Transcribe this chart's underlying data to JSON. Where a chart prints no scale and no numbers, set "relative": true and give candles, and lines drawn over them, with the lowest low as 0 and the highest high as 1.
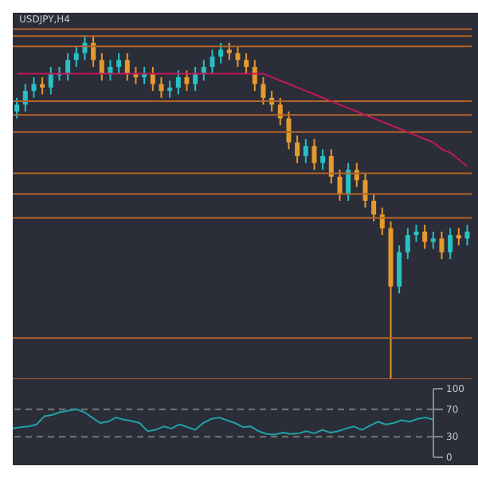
{
  "chart_data": [
    {
      "type": "candlestick",
      "title": "USDJPY,H4",
      "relative": true,
      "categories": [
        null,
        null,
        null,
        null,
        null,
        null,
        null,
        null,
        null,
        null,
        null,
        null,
        null,
        null,
        null,
        null,
        null,
        null,
        null,
        null,
        null,
        null,
        null,
        null,
        null,
        null,
        null,
        null,
        null,
        null,
        null,
        null,
        null,
        null,
        null,
        null,
        null,
        null,
        null,
        null,
        null,
        null,
        null,
        null,
        null,
        null,
        null,
        null,
        null,
        null,
        null,
        null,
        null,
        null
      ],
      "ohlc": [
        [
          0.78,
          0.82,
          0.76,
          0.8
        ],
        [
          0.8,
          0.86,
          0.78,
          0.84
        ],
        [
          0.84,
          0.88,
          0.82,
          0.86
        ],
        [
          0.86,
          0.88,
          0.83,
          0.85
        ],
        [
          0.85,
          0.91,
          0.83,
          0.89
        ],
        [
          0.89,
          0.91,
          0.87,
          0.89
        ],
        [
          0.89,
          0.95,
          0.87,
          0.93
        ],
        [
          0.93,
          0.97,
          0.91,
          0.95
        ],
        [
          0.95,
          1.0,
          0.93,
          0.98
        ],
        [
          0.98,
          1.0,
          0.91,
          0.93
        ],
        [
          0.93,
          0.95,
          0.87,
          0.89
        ],
        [
          0.89,
          0.93,
          0.87,
          0.91
        ],
        [
          0.91,
          0.95,
          0.89,
          0.93
        ],
        [
          0.93,
          0.95,
          0.87,
          0.89
        ],
        [
          0.89,
          0.91,
          0.86,
          0.88
        ],
        [
          0.88,
          0.91,
          0.86,
          0.89
        ],
        [
          0.89,
          0.91,
          0.84,
          0.86
        ],
        [
          0.86,
          0.88,
          0.82,
          0.84
        ],
        [
          0.84,
          0.87,
          0.82,
          0.85
        ],
        [
          0.85,
          0.9,
          0.83,
          0.88
        ],
        [
          0.88,
          0.9,
          0.84,
          0.86
        ],
        [
          0.86,
          0.91,
          0.84,
          0.89
        ],
        [
          0.89,
          0.93,
          0.87,
          0.91
        ],
        [
          0.91,
          0.96,
          0.89,
          0.94
        ],
        [
          0.94,
          0.98,
          0.92,
          0.96
        ],
        [
          0.96,
          0.98,
          0.93,
          0.95
        ],
        [
          0.95,
          0.97,
          0.91,
          0.93
        ],
        [
          0.93,
          0.95,
          0.89,
          0.91
        ],
        [
          0.91,
          0.93,
          0.84,
          0.86
        ],
        [
          0.86,
          0.88,
          0.8,
          0.82
        ],
        [
          0.82,
          0.84,
          0.78,
          0.8
        ],
        [
          0.8,
          0.82,
          0.74,
          0.76
        ],
        [
          0.76,
          0.78,
          0.67,
          0.69
        ],
        [
          0.69,
          0.71,
          0.63,
          0.65
        ],
        [
          0.65,
          0.7,
          0.63,
          0.68
        ],
        [
          0.68,
          0.7,
          0.61,
          0.63
        ],
        [
          0.63,
          0.67,
          0.61,
          0.65
        ],
        [
          0.65,
          0.67,
          0.57,
          0.59
        ],
        [
          0.59,
          0.61,
          0.52,
          0.54
        ],
        [
          0.54,
          0.63,
          0.52,
          0.61
        ],
        [
          0.61,
          0.63,
          0.56,
          0.58
        ],
        [
          0.58,
          0.6,
          0.5,
          0.52
        ],
        [
          0.52,
          0.54,
          0.46,
          0.48
        ],
        [
          0.48,
          0.5,
          0.42,
          0.44
        ],
        [
          0.44,
          0.46,
          0.0,
          0.27
        ],
        [
          0.27,
          0.39,
          0.25,
          0.37
        ],
        [
          0.37,
          0.44,
          0.35,
          0.42
        ],
        [
          0.42,
          0.45,
          0.4,
          0.43
        ],
        [
          0.43,
          0.45,
          0.38,
          0.4
        ],
        [
          0.4,
          0.43,
          0.38,
          0.41
        ],
        [
          0.41,
          0.43,
          0.35,
          0.37
        ],
        [
          0.37,
          0.44,
          0.35,
          0.42
        ],
        [
          0.42,
          0.44,
          0.39,
          0.41
        ],
        [
          0.41,
          0.45,
          0.39,
          0.43
        ]
      ],
      "colors": [
        "#27c1c4",
        "#27c1c4",
        "#27c1c4",
        "#e59a2e",
        "#27c1c4",
        "#27c1c4",
        "#27c1c4",
        "#27c1c4",
        "#27c1c4",
        "#e59a2e",
        "#e59a2e",
        "#27c1c4",
        "#27c1c4",
        "#e59a2e",
        "#e59a2e",
        "#27c1c4",
        "#e59a2e",
        "#e59a2e",
        "#27c1c4",
        "#27c1c4",
        "#e59a2e",
        "#27c1c4",
        "#27c1c4",
        "#27c1c4",
        "#27c1c4",
        "#e59a2e",
        "#e59a2e",
        "#e59a2e",
        "#e59a2e",
        "#e59a2e",
        "#e59a2e",
        "#e59a2e",
        "#e59a2e",
        "#e59a2e",
        "#27c1c4",
        "#e59a2e",
        "#27c1c4",
        "#e59a2e",
        "#e59a2e",
        "#27c1c4",
        "#e59a2e",
        "#e59a2e",
        "#e59a2e",
        "#e59a2e",
        "#e59a2e",
        "#27c1c4",
        "#27c1c4",
        "#27c1c4",
        "#e59a2e",
        "#27c1c4",
        "#e59a2e",
        "#27c1c4",
        "#e59a2e",
        "#27c1c4"
      ],
      "series": [
        {
          "type": "line",
          "color": "#c2185b",
          "values": [
            0.89,
            0.89,
            0.89,
            0.89,
            0.89,
            0.89,
            0.89,
            0.89,
            0.89,
            0.89,
            0.89,
            0.89,
            0.89,
            0.89,
            0.89,
            0.89,
            0.89,
            0.89,
            0.89,
            0.89,
            0.89,
            0.89,
            0.89,
            0.89,
            0.89,
            0.89,
            0.89,
            0.89,
            0.89,
            0.89,
            0.88,
            0.87,
            0.86,
            0.85,
            0.84,
            0.83,
            0.82,
            0.81,
            0.8,
            0.79,
            0.78,
            0.77,
            0.76,
            0.75,
            0.74,
            0.73,
            0.72,
            0.71,
            0.7,
            0.69,
            0.67,
            0.66,
            0.64,
            0.62
          ]
        }
      ],
      "ref_lines": [
        {
          "axis": "y",
          "value": 1.02,
          "color": "#b5652a"
        },
        {
          "axis": "y",
          "value": 1.0,
          "color": "#b5652a"
        },
        {
          "axis": "y",
          "value": 0.97,
          "color": "#b5652a"
        },
        {
          "axis": "y",
          "value": 0.81,
          "color": "#b5652a"
        },
        {
          "axis": "y",
          "value": 0.77,
          "color": "#b5652a"
        },
        {
          "axis": "y",
          "value": 0.72,
          "color": "#b5652a"
        },
        {
          "axis": "y",
          "value": 0.6,
          "color": "#b5652a"
        },
        {
          "axis": "y",
          "value": 0.54,
          "color": "#b5652a"
        },
        {
          "axis": "y",
          "value": 0.47,
          "color": "#b5652a"
        },
        {
          "axis": "y",
          "value": 0.12,
          "color": "#b5652a"
        },
        {
          "axis": "y",
          "value": 0,
          "color": "#b5652a"
        }
      ],
      "tick_labels": false
    },
    {
      "type": "line",
      "categories": [
        null,
        null,
        null,
        null,
        null,
        null,
        null,
        null,
        null,
        null,
        null,
        null,
        null,
        null,
        null,
        null,
        null,
        null,
        null,
        null,
        null,
        null,
        null,
        null,
        null,
        null,
        null,
        null,
        null,
        null,
        null,
        null,
        null,
        null,
        null,
        null,
        null,
        null,
        null,
        null,
        null,
        null,
        null,
        null,
        null,
        null,
        null,
        null,
        null,
        null,
        null,
        null,
        null,
        null
      ],
      "series": [
        {
          "color": "#1fa2a6",
          "values": [
            42,
            44,
            45,
            48,
            60,
            62,
            66,
            68,
            70,
            66,
            58,
            50,
            52,
            58,
            55,
            53,
            50,
            38,
            40,
            45,
            42,
            48,
            44,
            40,
            50,
            56,
            58,
            54,
            50,
            44,
            45,
            38,
            34,
            33,
            36,
            34,
            35,
            38,
            35,
            40,
            36,
            38,
            42,
            45,
            40,
            46,
            52,
            48,
            50,
            54,
            52,
            56,
            58,
            55
          ]
        }
      ],
      "ylim": [
        0,
        100
      ],
      "yticks": [
        0,
        30,
        70,
        100
      ],
      "ref_lines": [
        {
          "axis": "y",
          "value": 30,
          "color": "#777777",
          "line_style": "dashed"
        },
        {
          "axis": "y",
          "value": 70,
          "color": "#777777",
          "line_style": "dashed"
        }
      ],
      "tick_labels": "y"
    }
  ]
}
